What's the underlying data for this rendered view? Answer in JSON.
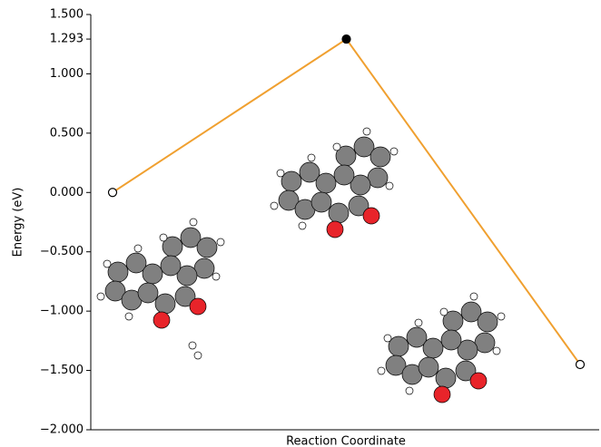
{
  "chart_data": {
    "type": "line",
    "xlabel": "Reaction Coordinate",
    "ylabel": "Energy (eV)",
    "categories": [
      null,
      null,
      null
    ],
    "values": [
      0,
      1.293,
      -1.45
    ],
    "color": "#f0a030",
    "marker_fills": [
      "#ffffff",
      "#000000",
      "#ffffff"
    ],
    "ylim": [
      -2.0,
      1.5
    ],
    "yticks": [
      {
        "value": 1.5,
        "label": "1.500"
      },
      {
        "value": 1.293,
        "label": "1.293"
      },
      {
        "value": 1.0,
        "label": "1.000"
      },
      {
        "value": 0.5,
        "label": "0.500"
      },
      {
        "value": 0.0,
        "label": "0.000"
      },
      {
        "value": -0.5,
        "label": "−0.500"
      },
      {
        "value": -1.0,
        "label": "−1.000"
      },
      {
        "value": -1.5,
        "label": "−1.500"
      },
      {
        "value": -2.0,
        "label": "−2.000"
      }
    ]
  }
}
